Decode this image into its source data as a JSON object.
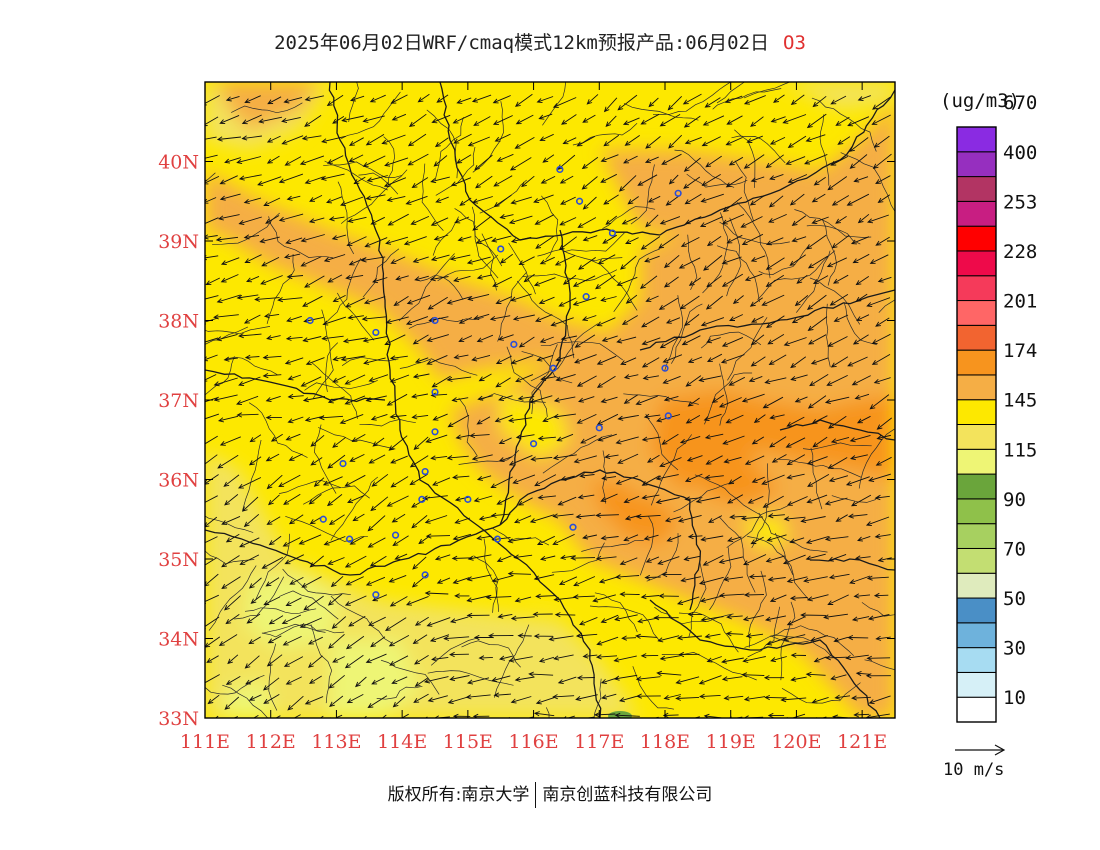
{
  "header": {
    "title": "2025年06月02日WRF/cmaq模式12km预报产品:06月02日",
    "species": "O3"
  },
  "map": {
    "lon_range": [
      111,
      121.5
    ],
    "lat_range": [
      33,
      41
    ],
    "x_ticks": [
      "111E",
      "112E",
      "113E",
      "114E",
      "115E",
      "116E",
      "117E",
      "118E",
      "119E",
      "120E",
      "121E"
    ],
    "y_ticks": [
      "33N",
      "34N",
      "35N",
      "36N",
      "37N",
      "38N",
      "39N",
      "40N"
    ],
    "field_colors": {
      "light_yellow": "#f3e35c",
      "yellow": "#fde800",
      "orange_light": "#f5ae45",
      "orange": "#f7941e",
      "pale_green": "#eef575",
      "green": "#6aa53b"
    },
    "stations": [
      [
        116.4,
        39.9
      ],
      [
        116.7,
        39.5
      ],
      [
        117.2,
        39.1
      ],
      [
        118.2,
        39.6
      ],
      [
        115.5,
        38.9
      ],
      [
        114.5,
        38.0
      ],
      [
        116.8,
        38.3
      ],
      [
        115.7,
        37.7
      ],
      [
        116.3,
        37.4
      ],
      [
        118.0,
        37.4
      ],
      [
        112.6,
        38.0
      ],
      [
        113.6,
        37.85
      ],
      [
        114.5,
        37.1
      ],
      [
        114.5,
        36.6
      ],
      [
        116.0,
        36.45
      ],
      [
        117.0,
        36.65
      ],
      [
        118.05,
        36.8
      ],
      [
        114.35,
        36.1
      ],
      [
        115.0,
        35.75
      ],
      [
        114.3,
        35.75
      ],
      [
        113.1,
        36.2
      ],
      [
        112.8,
        35.5
      ],
      [
        113.2,
        35.25
      ],
      [
        113.9,
        35.3
      ],
      [
        115.45,
        35.25
      ],
      [
        116.6,
        35.4
      ],
      [
        114.35,
        34.8
      ],
      [
        113.6,
        34.55
      ]
    ]
  },
  "colorbar": {
    "unit": "(ug/m3)",
    "colors": [
      "#ffffff",
      "#d6f0f7",
      "#a7dcf2",
      "#6eb2dc",
      "#4a8fc6",
      "#dfebbd",
      "#c3de72",
      "#a7d060",
      "#8fc14a",
      "#6aa53b",
      "#eef575",
      "#f3e35c",
      "#fde800",
      "#f5ae45",
      "#f7941e",
      "#f26430",
      "#ff6666",
      "#f53a5a",
      "#ee0a4a",
      "#ff0000",
      "#c81e82",
      "#b23463",
      "#962fbf",
      "#8a2be2"
    ],
    "labels": [
      "10",
      "30",
      "50",
      "70",
      "90",
      "115",
      "145",
      "174",
      "201",
      "228",
      "253",
      "400",
      "670"
    ]
  },
  "wind_legend": {
    "label": "10 m/s"
  },
  "footer": {
    "copyright": "版权所有:南京大学",
    "company": "南京创蓝科技有限公司"
  }
}
